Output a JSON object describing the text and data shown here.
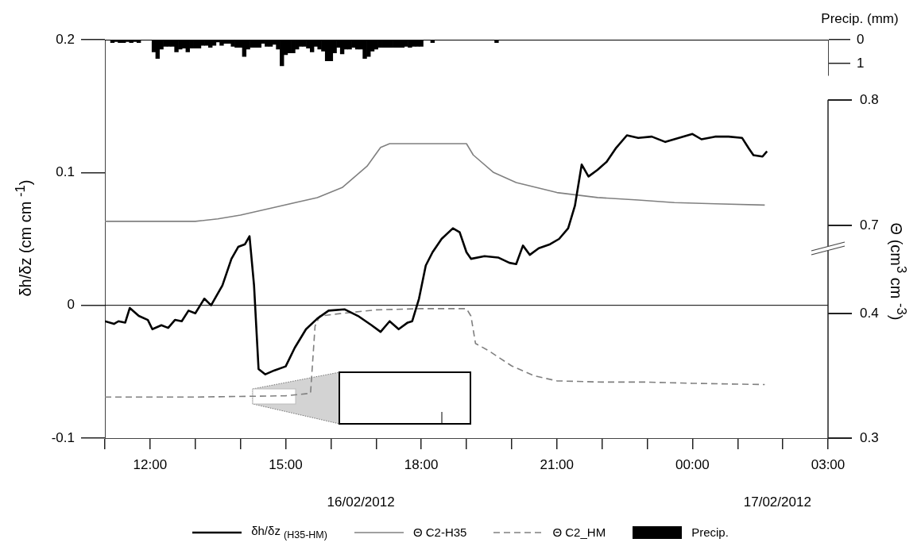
{
  "chart_data": [
    {
      "type": "bar",
      "legend": "bottom",
      "tick_labels": "y",
      "xlim": [
        "2012-02-16T11:00",
        "2012-02-17T03:00"
      ],
      "ylim": [
        1.5,
        0
      ],
      "yticks": [
        0,
        1
      ],
      "ylabel": "Precip. (mm)",
      "series": [
        {
          "name": "Precip.",
          "color": "#000000",
          "x": [
            "2012-02-16T11:10",
            "2012-02-16T11:15",
            "2012-02-16T11:20",
            "2012-02-16T11:25",
            "2012-02-16T11:30",
            "2012-02-16T11:35",
            "2012-02-16T11:40",
            "2012-02-16T11:45",
            "2012-02-16T12:05",
            "2012-02-16T12:10",
            "2012-02-16T12:15",
            "2012-02-16T12:20",
            "2012-02-16T12:25",
            "2012-02-16T12:30",
            "2012-02-16T12:35",
            "2012-02-16T12:40",
            "2012-02-16T12:45",
            "2012-02-16T12:50",
            "2012-02-16T12:55",
            "2012-02-16T13:00",
            "2012-02-16T13:05",
            "2012-02-16T13:10",
            "2012-02-16T13:15",
            "2012-02-16T13:20",
            "2012-02-16T13:25",
            "2012-02-16T13:30",
            "2012-02-16T13:35",
            "2012-02-16T13:40",
            "2012-02-16T13:45",
            "2012-02-16T13:50",
            "2012-02-16T13:55",
            "2012-02-16T14:00",
            "2012-02-16T14:05",
            "2012-02-16T14:10",
            "2012-02-16T14:15",
            "2012-02-16T14:20",
            "2012-02-16T14:25",
            "2012-02-16T14:30",
            "2012-02-16T14:35",
            "2012-02-16T14:40",
            "2012-02-16T14:45",
            "2012-02-16T14:50",
            "2012-02-16T14:55",
            "2012-02-16T15:00",
            "2012-02-16T15:05",
            "2012-02-16T15:10",
            "2012-02-16T15:15",
            "2012-02-16T15:20",
            "2012-02-16T15:25",
            "2012-02-16T15:30",
            "2012-02-16T15:35",
            "2012-02-16T15:40",
            "2012-02-16T15:45",
            "2012-02-16T15:50",
            "2012-02-16T15:55",
            "2012-02-16T16:00",
            "2012-02-16T16:05",
            "2012-02-16T16:10",
            "2012-02-16T16:15",
            "2012-02-16T16:20",
            "2012-02-16T16:25",
            "2012-02-16T16:30",
            "2012-02-16T16:35",
            "2012-02-16T16:40",
            "2012-02-16T16:45",
            "2012-02-16T16:50",
            "2012-02-16T16:55",
            "2012-02-16T17:00",
            "2012-02-16T17:05",
            "2012-02-16T17:10",
            "2012-02-16T17:15",
            "2012-02-16T17:20",
            "2012-02-16T17:25",
            "2012-02-16T17:30",
            "2012-02-16T17:35",
            "2012-02-16T17:40",
            "2012-02-16T17:45",
            "2012-02-16T17:50",
            "2012-02-16T17:55",
            "2012-02-16T18:00",
            "2012-02-16T18:15",
            "2012-02-16T19:40"
          ],
          "values": [
            0.12,
            0.08,
            0.12,
            0.12,
            0.08,
            0.12,
            0.08,
            0.12,
            0.52,
            0.79,
            0.4,
            0.28,
            0.28,
            0.28,
            0.52,
            0.4,
            0.36,
            0.52,
            0.36,
            0.36,
            0.36,
            0.24,
            0.24,
            0.32,
            0.24,
            0.1,
            0.24,
            0.16,
            0.16,
            0.28,
            0.32,
            0.32,
            0.71,
            0.4,
            0.32,
            0.32,
            0.32,
            0.16,
            0.28,
            0.28,
            0.2,
            0.4,
            1.1,
            0.63,
            0.56,
            0.56,
            0.4,
            0.28,
            0.28,
            0.36,
            0.52,
            0.28,
            0.4,
            0.48,
            0.89,
            0.89,
            0.56,
            0.32,
            0.6,
            0.4,
            0.4,
            0.32,
            0.4,
            0.4,
            0.79,
            0.71,
            0.48,
            0.4,
            0.32,
            0.32,
            0.32,
            0.32,
            0.32,
            0.32,
            0.32,
            0.28,
            0.32,
            0.28,
            0.28,
            0.28,
            0.12,
            0.12
          ]
        }
      ]
    },
    {
      "type": "line",
      "legend": "bottom",
      "xlim": [
        "2012-02-16T11:00",
        "2012-02-17T03:00"
      ],
      "xticks": [
        {
          "value": "2012-02-16T11:00",
          "label": null
        },
        {
          "value": "2012-02-16T12:00",
          "label": "12:00"
        },
        {
          "value": "2012-02-16T13:00",
          "label": null
        },
        {
          "value": "2012-02-16T14:00",
          "label": null
        },
        {
          "value": "2012-02-16T15:00",
          "label": "15:00"
        },
        {
          "value": "2012-02-16T16:00",
          "label": null
        },
        {
          "value": "2012-02-16T17:00",
          "label": null
        },
        {
          "value": "2012-02-16T18:00",
          "label": "18:00"
        },
        {
          "value": "2012-02-16T19:00",
          "label": null
        },
        {
          "value": "2012-02-16T20:00",
          "label": null
        },
        {
          "value": "2012-02-16T21:00",
          "label": "21:00"
        },
        {
          "value": "2012-02-16T22:00",
          "label": null
        },
        {
          "value": "2012-02-16T23:00",
          "label": null
        },
        {
          "value": "2012-02-17T00:00",
          "label": "00:00"
        },
        {
          "value": "2012-02-17T01:00",
          "label": null
        },
        {
          "value": "2012-02-17T02:00",
          "label": null
        },
        {
          "value": "2012-02-17T03:00",
          "label": "03:00"
        }
      ],
      "ylim": [
        -0.1,
        0.2
      ],
      "yticks": [
        -0.1,
        0,
        0.1,
        0.2
      ],
      "y2lim": [
        0.3,
        0.62
      ],
      "y2ticks": [
        0.3,
        0.4
      ],
      "y3lim": [
        0.53,
        0.848
      ],
      "y3ticks": [
        0.7,
        0.8
      ],
      "ylabel": "δh/δz (cm cm $^{-1}$)",
      "y2label": "Θ (cm$^{3}$ cm $^{-3}$)",
      "ref_lines": [
        {
          "axis": "y",
          "value": 0
        }
      ],
      "annotations": [
        "16/02/2012",
        "17/02/2012"
      ],
      "series": [
        {
          "name": "δh/δz $_{(H35-HM)}$",
          "color": "#000000",
          "x": [
            "2012-02-16T11:00",
            "2012-02-16T11:12",
            "2012-02-16T11:18",
            "2012-02-16T11:27",
            "2012-02-16T11:33",
            "2012-02-16T11:45",
            "2012-02-16T11:57",
            "2012-02-16T12:03",
            "2012-02-16T12:15",
            "2012-02-16T12:24",
            "2012-02-16T12:33",
            "2012-02-16T12:42",
            "2012-02-16T12:51",
            "2012-02-16T13:00",
            "2012-02-16T13:12",
            "2012-02-16T13:21",
            "2012-02-16T13:36",
            "2012-02-16T13:48",
            "2012-02-16T13:57",
            "2012-02-16T14:06",
            "2012-02-16T14:12",
            "2012-02-16T14:18",
            "2012-02-16T14:24",
            "2012-02-16T14:33",
            "2012-02-16T14:45",
            "2012-02-16T15:00",
            "2012-02-16T15:12",
            "2012-02-16T15:27",
            "2012-02-16T15:42",
            "2012-02-16T15:57",
            "2012-02-16T16:18",
            "2012-02-16T16:36",
            "2012-02-16T16:54",
            "2012-02-16T17:06",
            "2012-02-16T17:18",
            "2012-02-16T17:30",
            "2012-02-16T17:42",
            "2012-02-16T17:48",
            "2012-02-16T17:57",
            "2012-02-16T18:06",
            "2012-02-16T18:15",
            "2012-02-16T18:27",
            "2012-02-16T18:42",
            "2012-02-16T18:51",
            "2012-02-16T19:00",
            "2012-02-16T19:06",
            "2012-02-16T19:24",
            "2012-02-16T19:42",
            "2012-02-16T19:57",
            "2012-02-16T20:06",
            "2012-02-16T20:15",
            "2012-02-16T20:24",
            "2012-02-16T20:36",
            "2012-02-16T20:51",
            "2012-02-16T21:03",
            "2012-02-16T21:15",
            "2012-02-16T21:24",
            "2012-02-16T21:33",
            "2012-02-16T21:42",
            "2012-02-16T21:54",
            "2012-02-16T22:06",
            "2012-02-16T22:18",
            "2012-02-16T22:33",
            "2012-02-16T22:48",
            "2012-02-16T23:06",
            "2012-02-16T23:24",
            "2012-02-16T23:42",
            "2012-02-17T00:00",
            "2012-02-17T00:12",
            "2012-02-17T00:30",
            "2012-02-17T00:48",
            "2012-02-17T01:06",
            "2012-02-17T01:15",
            "2012-02-17T01:21",
            "2012-02-17T01:33",
            "2012-02-17T01:39"
          ],
          "values": [
            -0.012,
            -0.014,
            -0.012,
            -0.013,
            -0.002,
            -0.008,
            -0.011,
            -0.018,
            -0.015,
            -0.017,
            -0.011,
            -0.012,
            -0.004,
            -0.006,
            0.005,
            0.0,
            0.015,
            0.035,
            0.044,
            0.046,
            0.052,
            0.015,
            -0.048,
            -0.052,
            -0.049,
            -0.046,
            -0.032,
            -0.018,
            -0.01,
            -0.004,
            -0.003,
            -0.008,
            -0.015,
            -0.02,
            -0.012,
            -0.018,
            -0.013,
            -0.012,
            0.005,
            0.03,
            0.04,
            0.05,
            0.058,
            0.055,
            0.04,
            0.035,
            0.037,
            0.036,
            0.032,
            0.031,
            0.045,
            0.038,
            0.043,
            0.046,
            0.05,
            0.058,
            0.075,
            0.106,
            0.097,
            0.102,
            0.108,
            0.118,
            0.128,
            0.126,
            0.127,
            0.123,
            0.126,
            0.129,
            0.125,
            0.127,
            0.127,
            0.126,
            0.118,
            0.113,
            0.112,
            0.116
          ]
        },
        {
          "name": "Θ C2-H35",
          "color": "#808080",
          "axis": "y3",
          "x": [
            "2012-02-16T11:00",
            "2012-02-16T12:00",
            "2012-02-16T13:00",
            "2012-02-16T13:30",
            "2012-02-16T14:00",
            "2012-02-16T14:51",
            "2012-02-16T15:42",
            "2012-02-16T16:15",
            "2012-02-16T16:48",
            "2012-02-16T17:06",
            "2012-02-16T17:18",
            "2012-02-16T18:12",
            "2012-02-16T19:00",
            "2012-02-16T19:09",
            "2012-02-16T19:36",
            "2012-02-16T20:06",
            "2012-02-16T21:00",
            "2012-02-16T21:54",
            "2012-02-16T22:48",
            "2012-02-16T23:36",
            "2012-02-17T00:30",
            "2012-02-17T01:36"
          ],
          "values": [
            0.703,
            0.703,
            0.703,
            0.705,
            0.708,
            0.715,
            0.722,
            0.73,
            0.747,
            0.762,
            0.765,
            0.765,
            0.765,
            0.756,
            0.742,
            0.734,
            0.726,
            0.722,
            0.72,
            0.718,
            0.717,
            0.716
          ]
        },
        {
          "name": "Θ C2_HM",
          "color": "#808080",
          "axis": "y2",
          "line_style": "dashed",
          "x": [
            "2012-02-16T11:00",
            "2012-02-16T13:00",
            "2012-02-16T15:00",
            "2012-02-16T15:33",
            "2012-02-16T15:39",
            "2012-02-16T15:45",
            "2012-02-16T16:12",
            "2012-02-16T17:00",
            "2012-02-16T18:00",
            "2012-02-16T19:00",
            "2012-02-16T19:06",
            "2012-02-16T19:12",
            "2012-02-16T19:30",
            "2012-02-16T20:00",
            "2012-02-16T20:30",
            "2012-02-16T21:00",
            "2012-02-16T22:00",
            "2012-02-16T23:00",
            "2012-02-17T00:00",
            "2012-02-17T01:36"
          ],
          "values": [
            0.333,
            0.333,
            0.334,
            0.336,
            0.39,
            0.398,
            0.4,
            0.403,
            0.404,
            0.404,
            0.398,
            0.376,
            0.37,
            0.358,
            0.35,
            0.346,
            0.345,
            0.345,
            0.344,
            0.343
          ]
        }
      ]
    }
  ]
}
